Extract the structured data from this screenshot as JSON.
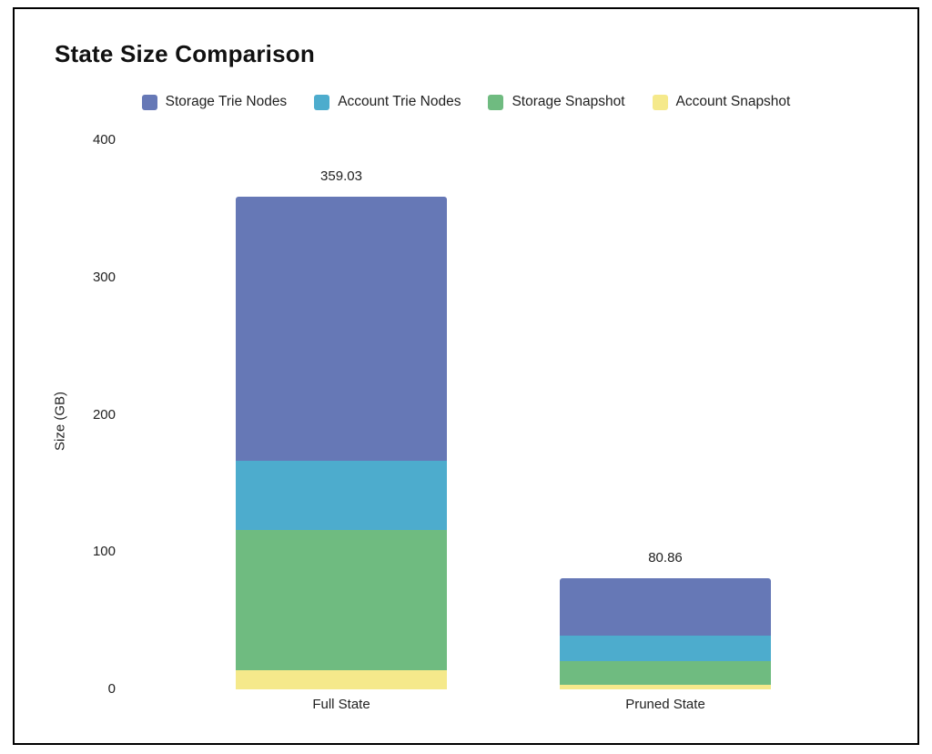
{
  "chart_data": {
    "type": "bar",
    "stacked": true,
    "title": "State Size Comparison",
    "ylabel": "Size (GB)",
    "categories": [
      "Full State",
      "Pruned State"
    ],
    "series": [
      {
        "name": "Storage Trie Nodes",
        "color": "#6678b6",
        "values": [
          192.5,
          41.86
        ]
      },
      {
        "name": "Account Trie Nodes",
        "color": "#4daccd",
        "values": [
          50.4,
          18.5
        ]
      },
      {
        "name": "Storage Snapshot",
        "color": "#6fbb80",
        "values": [
          102.2,
          17.0
        ]
      },
      {
        "name": "Account Snapshot",
        "color": "#f5e98b",
        "values": [
          13.93,
          3.5
        ]
      }
    ],
    "totals": [
      "359.03",
      "80.86"
    ],
    "yticks": [
      0,
      100,
      200,
      300,
      400
    ],
    "ylim": [
      0,
      400
    ],
    "grid": false,
    "legend_position": "top-center",
    "background": "#ffffff",
    "border_color": "#000000",
    "text_color": "#212121"
  }
}
